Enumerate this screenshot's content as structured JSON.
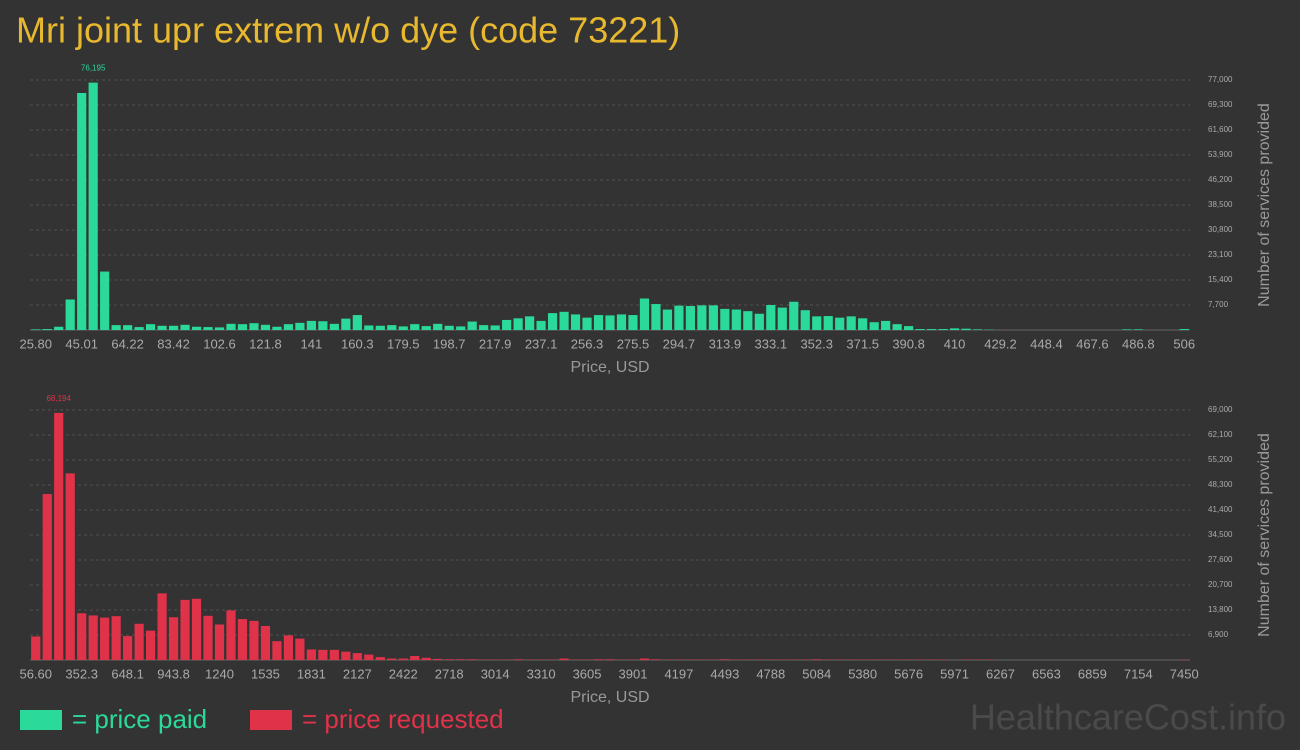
{
  "title": "Mri joint upr extrem w/o dye (code 73221)",
  "watermark": "HealthcareCost.info",
  "chart_data": [
    {
      "type": "bar",
      "x_label": "Price, USD",
      "y_label": "Number of services provided",
      "grid": true,
      "categories": [
        "25.80",
        null,
        null,
        null,
        "45.01",
        null,
        null,
        null,
        "64.22",
        null,
        null,
        null,
        "83.42",
        null,
        null,
        null,
        "102.6",
        null,
        null,
        null,
        "121.8",
        null,
        null,
        null,
        "141",
        null,
        null,
        null,
        "160.3",
        null,
        null,
        null,
        "179.5",
        null,
        null,
        null,
        "198.7",
        null,
        null,
        null,
        "217.9",
        null,
        null,
        null,
        "237.1",
        null,
        null,
        null,
        "256.3",
        null,
        null,
        null,
        "275.5",
        null,
        null,
        null,
        "294.7",
        null,
        null,
        null,
        "313.9",
        null,
        null,
        null,
        "333.1",
        null,
        null,
        null,
        "352.3",
        null,
        null,
        null,
        "371.5",
        null,
        null,
        null,
        "390.8",
        null,
        null,
        null,
        "410",
        null,
        null,
        null,
        "429.2",
        null,
        null,
        null,
        "448.4",
        null,
        null,
        null,
        "467.6",
        null,
        null,
        null,
        "486.8",
        null,
        null,
        null,
        "506"
      ],
      "series": [
        {
          "name": "= price paid",
          "color": "#2bd99a",
          "values": [
            200,
            300,
            1000,
            9400,
            73000,
            76195,
            18000,
            1500,
            1500,
            900,
            1800,
            1300,
            1300,
            1600,
            1000,
            900,
            800,
            1900,
            1800,
            2100,
            1600,
            1000,
            1800,
            2200,
            2800,
            2700,
            1900,
            3500,
            4600,
            1400,
            1300,
            1500,
            1100,
            1800,
            1200,
            1900,
            1300,
            1100,
            2600,
            1500,
            1400,
            3100,
            3600,
            4200,
            2800,
            5200,
            5600,
            4800,
            3800,
            4600,
            4500,
            4800,
            4600,
            9700,
            8000,
            6300,
            7500,
            7400,
            7600,
            7600,
            6500,
            6300,
            5800,
            5000,
            7700,
            6900,
            8700,
            6100,
            4200,
            4300,
            3800,
            4200,
            3600,
            2400,
            2800,
            1800,
            1200,
            300,
            300,
            300,
            500,
            400,
            200,
            100,
            0,
            0,
            0,
            0,
            0,
            0,
            0,
            0,
            0,
            0,
            0,
            200,
            200,
            0,
            0,
            0,
            300
          ],
          "value_labels": [
            null,
            null,
            null,
            null,
            null,
            "76,195",
            null,
            null,
            null,
            null,
            null,
            null,
            null,
            null,
            null,
            null,
            null,
            null,
            null,
            null,
            null,
            null,
            null,
            null,
            null,
            null,
            null,
            null,
            null,
            null,
            null,
            null,
            null,
            null,
            null,
            null,
            null,
            null,
            null,
            null,
            null,
            null,
            null,
            null,
            null,
            null,
            null,
            null,
            null,
            null,
            null,
            null,
            null,
            null,
            null,
            null,
            null,
            null,
            null,
            null,
            null,
            null,
            null,
            null,
            null,
            null,
            null,
            null,
            null,
            null,
            null,
            null,
            null,
            null,
            null,
            null,
            null,
            null,
            null,
            null,
            null,
            null,
            null,
            null,
            null,
            null,
            null,
            null,
            null,
            null,
            null,
            null,
            null,
            null,
            null,
            null,
            null,
            null,
            null,
            null,
            null
          ]
        }
      ],
      "ylim": [
        0,
        77000
      ],
      "yticks": [
        {
          "value": 7700,
          "label": "7,700"
        },
        {
          "value": 15400,
          "label": "15,400"
        },
        {
          "value": 23100,
          "label": "23,100"
        },
        {
          "value": 30800,
          "label": "30,800"
        },
        {
          "value": 38500,
          "label": "38,500"
        },
        {
          "value": 46200,
          "label": "46,200"
        },
        {
          "value": 53900,
          "label": "53,900"
        },
        {
          "value": 61600,
          "label": "61,600"
        },
        {
          "value": 69300,
          "label": "69,300"
        },
        {
          "value": 77000,
          "label": "77,000"
        }
      ]
    },
    {
      "type": "bar",
      "x_label": "Price, USD",
      "y_label": "Number of services provided",
      "grid": true,
      "categories": [
        "56.60",
        null,
        null,
        null,
        "352.3",
        null,
        null,
        null,
        "648.1",
        null,
        null,
        null,
        "943.8",
        null,
        null,
        null,
        "1240",
        null,
        null,
        null,
        "1535",
        null,
        null,
        null,
        "1831",
        null,
        null,
        null,
        "2127",
        null,
        null,
        null,
        "2422",
        null,
        null,
        null,
        "2718",
        null,
        null,
        null,
        "3014",
        null,
        null,
        null,
        "3310",
        null,
        null,
        null,
        "3605",
        null,
        null,
        null,
        "3901",
        null,
        null,
        null,
        "4197",
        null,
        null,
        null,
        "4493",
        null,
        null,
        null,
        "4788",
        null,
        null,
        null,
        "5084",
        null,
        null,
        null,
        "5380",
        null,
        null,
        null,
        "5676",
        null,
        null,
        null,
        "5971",
        null,
        null,
        null,
        "6267",
        null,
        null,
        null,
        "6563",
        null,
        null,
        null,
        "6859",
        null,
        null,
        null,
        "7154",
        null,
        null,
        null,
        "7450"
      ],
      "series": [
        {
          "name": "= price requested",
          "color": "#e0334a",
          "values": [
            6500,
            45800,
            68194,
            51500,
            12900,
            12300,
            11700,
            12100,
            6600,
            10000,
            8100,
            18400,
            11800,
            16600,
            16900,
            12200,
            9800,
            13700,
            11300,
            10800,
            9400,
            5200,
            6800,
            5900,
            2900,
            2800,
            2800,
            2300,
            1900,
            1500,
            800,
            400,
            400,
            1100,
            600,
            300,
            200,
            200,
            200,
            100,
            100,
            100,
            200,
            100,
            100,
            100,
            400,
            100,
            100,
            200,
            200,
            100,
            100,
            400,
            200,
            100,
            100,
            100,
            100,
            100,
            200,
            100,
            100,
            100,
            100,
            100,
            100,
            100,
            200,
            100,
            100,
            100,
            100,
            100,
            100,
            100,
            100,
            100,
            100,
            100,
            0,
            100,
            100,
            100,
            0,
            0,
            0,
            0,
            0,
            0,
            0,
            0,
            0,
            0,
            0,
            0,
            0,
            0,
            0,
            0,
            100
          ],
          "value_labels": [
            null,
            null,
            "68,194",
            null,
            null,
            null,
            null,
            null,
            null,
            null,
            null,
            null,
            null,
            null,
            null,
            null,
            null,
            null,
            null,
            null,
            null,
            null,
            null,
            null,
            null,
            null,
            null,
            null,
            null,
            null,
            null,
            null,
            null,
            null,
            null,
            null,
            null,
            null,
            null,
            null,
            null,
            null,
            null,
            null,
            null,
            null,
            null,
            null,
            null,
            null,
            null,
            null,
            null,
            null,
            null,
            null,
            null,
            null,
            null,
            null,
            null,
            null,
            null,
            null,
            null,
            null,
            null,
            null,
            null,
            null,
            null,
            null,
            null,
            null,
            null,
            null,
            null,
            null,
            null,
            null,
            null,
            null,
            null,
            null,
            null,
            null,
            null,
            null,
            null,
            null,
            null,
            null,
            null,
            null,
            null,
            null,
            null,
            null,
            null,
            null,
            null
          ]
        }
      ],
      "ylim": [
        0,
        69000
      ],
      "yticks": [
        {
          "value": 6900,
          "label": "6,900"
        },
        {
          "value": 13800,
          "label": "13,800"
        },
        {
          "value": 20700,
          "label": "20,700"
        },
        {
          "value": 27600,
          "label": "27,600"
        },
        {
          "value": 34500,
          "label": "34,500"
        },
        {
          "value": 41400,
          "label": "41,400"
        },
        {
          "value": 48300,
          "label": "48,300"
        },
        {
          "value": 55200,
          "label": "55,200"
        },
        {
          "value": 62100,
          "label": "62,100"
        },
        {
          "value": 69000,
          "label": "69,000"
        }
      ]
    }
  ]
}
